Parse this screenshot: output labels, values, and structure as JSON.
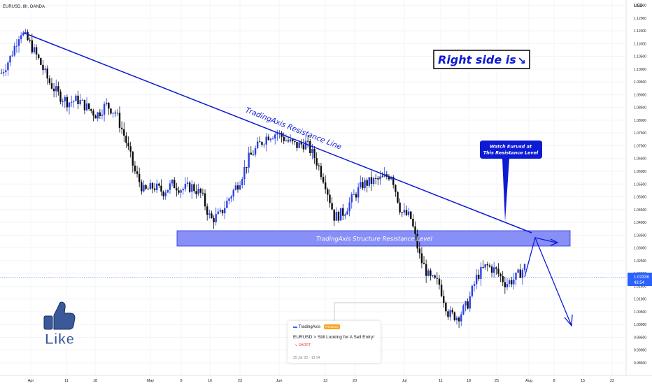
{
  "header": {
    "symbol_label": "EURUSD, 8h, OANDA",
    "currency_label": "USD"
  },
  "price_axis": {
    "ticks": [
      "1.12500",
      "1.12000",
      "1.11500",
      "1.11000",
      "1.10500",
      "1.10000",
      "1.09500",
      "1.09000",
      "1.08500",
      "1.08000",
      "1.07500",
      "1.07000",
      "1.06500",
      "1.06000",
      "1.05500",
      "1.05000",
      "1.04500",
      "1.04000",
      "1.03500",
      "1.03000",
      "1.02500",
      "1.02000",
      "1.01500",
      "1.01000",
      "1.00500",
      "1.00000",
      "0.99500",
      "0.99000",
      "0.98500"
    ],
    "current_price": "1.02338",
    "countdown": "43:54",
    "price_tag_color": "#2962ff"
  },
  "time_axis": {
    "ticks": [
      "Apr",
      "11",
      "18",
      "May",
      "9",
      "16",
      "23",
      "Jun",
      "13",
      "20",
      "Jul",
      "11",
      "18",
      "25",
      "Aug",
      "8",
      "15",
      "22"
    ]
  },
  "annotations": {
    "trendline_label": "TradingAxis Resistance Line",
    "zone_label": "TradingAxis Structure Resistance Level",
    "callout_line1": "Watch Eurusd at",
    "callout_line2": "This Resistance Level",
    "right_side_text": "Right side is",
    "right_side_arrow": "↘",
    "like_text": "Like",
    "colors": {
      "annotation_blue": "#0d1bd3",
      "zone_fill": "#7b84f6",
      "up_candle": "#2a41e3",
      "down_candle": "#0b0b0b"
    }
  },
  "idea_card": {
    "author": "TradingAxis",
    "badge": "PREMIUM",
    "title": "EURUSD > Still Looking for A Sell Entry!",
    "direction": "SHORT",
    "direction_icon": "↘",
    "date": "25 Jul '22 · 13:14"
  },
  "chart_data": {
    "type": "candlestick",
    "symbol": "EURUSD",
    "timeframe": "8h",
    "ylim": [
      0.985,
      1.128
    ],
    "x": [
      "Mar 25",
      "Mar 27",
      "Mar 29",
      "Mar 31",
      "Apr 1",
      "Apr 4",
      "Apr 6",
      "Apr 8",
      "Apr 11",
      "Apr 13",
      "Apr 15",
      "Apr 18",
      "Apr 20",
      "Apr 22",
      "Apr 25",
      "Apr 27",
      "Apr 29",
      "May 2",
      "May 4",
      "May 6",
      "May 9",
      "May 11",
      "May 13",
      "May 16",
      "May 18",
      "May 20",
      "May 23",
      "May 25",
      "May 27",
      "May 30",
      "Jun 1",
      "Jun 3",
      "Jun 6",
      "Jun 8",
      "Jun 10",
      "Jun 13",
      "Jun 15",
      "Jun 17",
      "Jun 20",
      "Jun 22",
      "Jun 24",
      "Jun 27",
      "Jun 29",
      "Jul 1",
      "Jul 4",
      "Jul 6",
      "Jul 8",
      "Jul 11",
      "Jul 13",
      "Jul 15",
      "Jul 18",
      "Jul 20",
      "Jul 22",
      "Jul 25",
      "Jul 27",
      "Jul 29"
    ],
    "close": [
      1.0985,
      1.105,
      1.115,
      1.11,
      1.103,
      1.095,
      1.09,
      1.087,
      1.088,
      1.085,
      1.082,
      1.086,
      1.083,
      1.073,
      1.06,
      1.052,
      1.054,
      1.052,
      1.055,
      1.053,
      1.054,
      1.051,
      1.041,
      1.043,
      1.05,
      1.056,
      1.065,
      1.07,
      1.074,
      1.075,
      1.072,
      1.07,
      1.071,
      1.065,
      1.056,
      1.042,
      1.044,
      1.05,
      1.055,
      1.056,
      1.057,
      1.059,
      1.044,
      1.042,
      1.026,
      1.018,
      1.016,
      1.004,
      1.003,
      1.008,
      1.019,
      1.023,
      1.021,
      1.016,
      1.018,
      1.0225
    ],
    "trendline": {
      "label": "TradingAxis Resistance Line",
      "x": [
        "Mar 30",
        "Aug 3"
      ],
      "y": [
        1.119,
        1.0405
      ]
    },
    "resistance_zone": {
      "label": "TradingAxis Structure Resistance Level",
      "y": [
        1.035,
        1.041
      ]
    },
    "last_price": 1.02338,
    "projection_x": [
      "Jul 29",
      "Aug 2",
      "Aug 6"
    ],
    "projection_y": [
      1.0235,
      1.04,
      1.004
    ]
  }
}
